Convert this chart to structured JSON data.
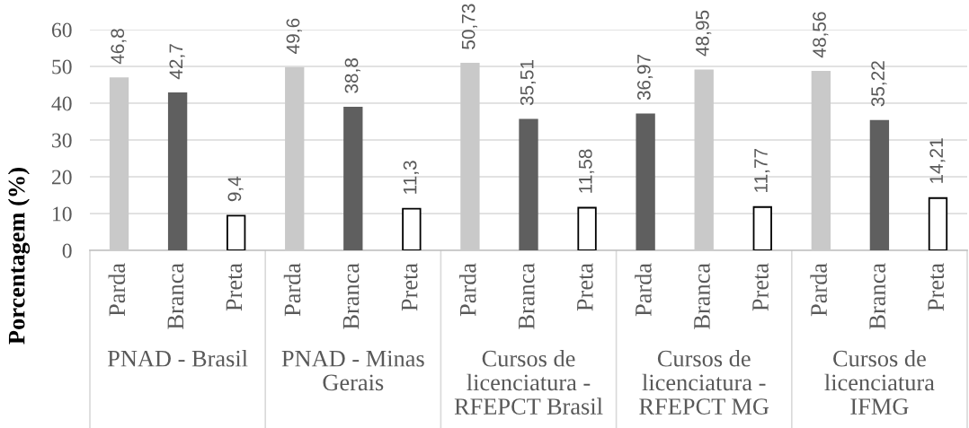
{
  "chart_data": {
    "type": "bar",
    "ylabel": "Porcentagem (%)",
    "categories": [
      "Parda",
      "Branca",
      "Preta",
      "Parda",
      "Branca",
      "Preta",
      "Parda",
      "Branca",
      "Preta",
      "Parda",
      "Branca",
      "Preta",
      "Parda",
      "Branca",
      "Preta"
    ],
    "values": [
      46.8,
      42.7,
      9.4,
      49.6,
      38.8,
      11.3,
      50.73,
      35.51,
      11.58,
      36.97,
      48.95,
      11.77,
      48.56,
      35.22,
      14.21
    ],
    "colors": [
      "#c9c9c9",
      "#5f5f5f",
      "#ffffff",
      "#c9c9c9",
      "#5f5f5f",
      "#ffffff",
      "#c9c9c9",
      "#5f5f5f",
      "#ffffff",
      "#5f5f5f",
      "#c9c9c9",
      "#ffffff",
      "#c9c9c9",
      "#5f5f5f",
      "#ffffff"
    ],
    "value_labels": [
      "46,8",
      "42,7",
      "9,4",
      "49,6",
      "38,8",
      "11,3",
      "50,73",
      "35,51",
      "11,58",
      "36,97",
      "48,95",
      "11,77",
      "48,56",
      "35,22",
      "14,21"
    ],
    "ylim": [
      0,
      60
    ],
    "yticks": [
      0,
      10,
      20,
      30,
      40,
      50,
      60
    ],
    "grid": "y",
    "annotations": [
      "PNAD - Brasil",
      "PNAD - Minas\nGerais",
      "Cursos de\nlicenciatura -\nRFEPCT Brasil",
      "Cursos de\nlicenciatura -\nRFEPCT MG",
      "Cursos de\nlicenciatura\nIFMG"
    ]
  }
}
